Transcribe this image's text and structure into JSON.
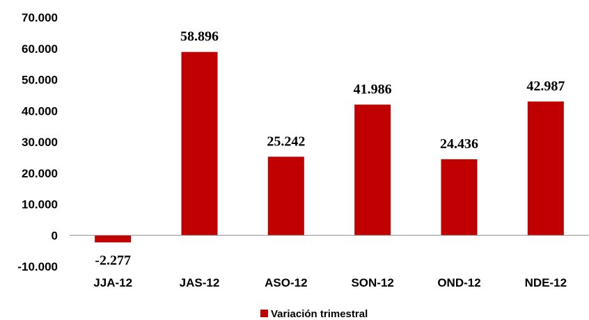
{
  "chart_data": {
    "type": "bar",
    "categories": [
      "JJA-12",
      "JAS-12",
      "ASO-12",
      "SON-12",
      "OND-12",
      "NDE-12"
    ],
    "series": [
      {
        "name": "Variación trimestral",
        "values": [
          -2277,
          58896,
          25242,
          41986,
          24436,
          42987
        ],
        "labels": [
          "-2.277",
          "58.896",
          "25.242",
          "41.986",
          "24.436",
          "42.987"
        ],
        "color": "#c00000"
      }
    ],
    "yticks": [
      "-10.000",
      "0",
      "10.000",
      "20.000",
      "30.000",
      "40.000",
      "50.000",
      "60.000",
      "70.000"
    ],
    "ytick_values": [
      -10000,
      0,
      10000,
      20000,
      30000,
      40000,
      50000,
      60000,
      70000
    ],
    "ylim": [
      -10000,
      70000
    ],
    "grid": false,
    "legend_position": "bottom",
    "title": "",
    "xlabel": "",
    "ylabel": ""
  }
}
